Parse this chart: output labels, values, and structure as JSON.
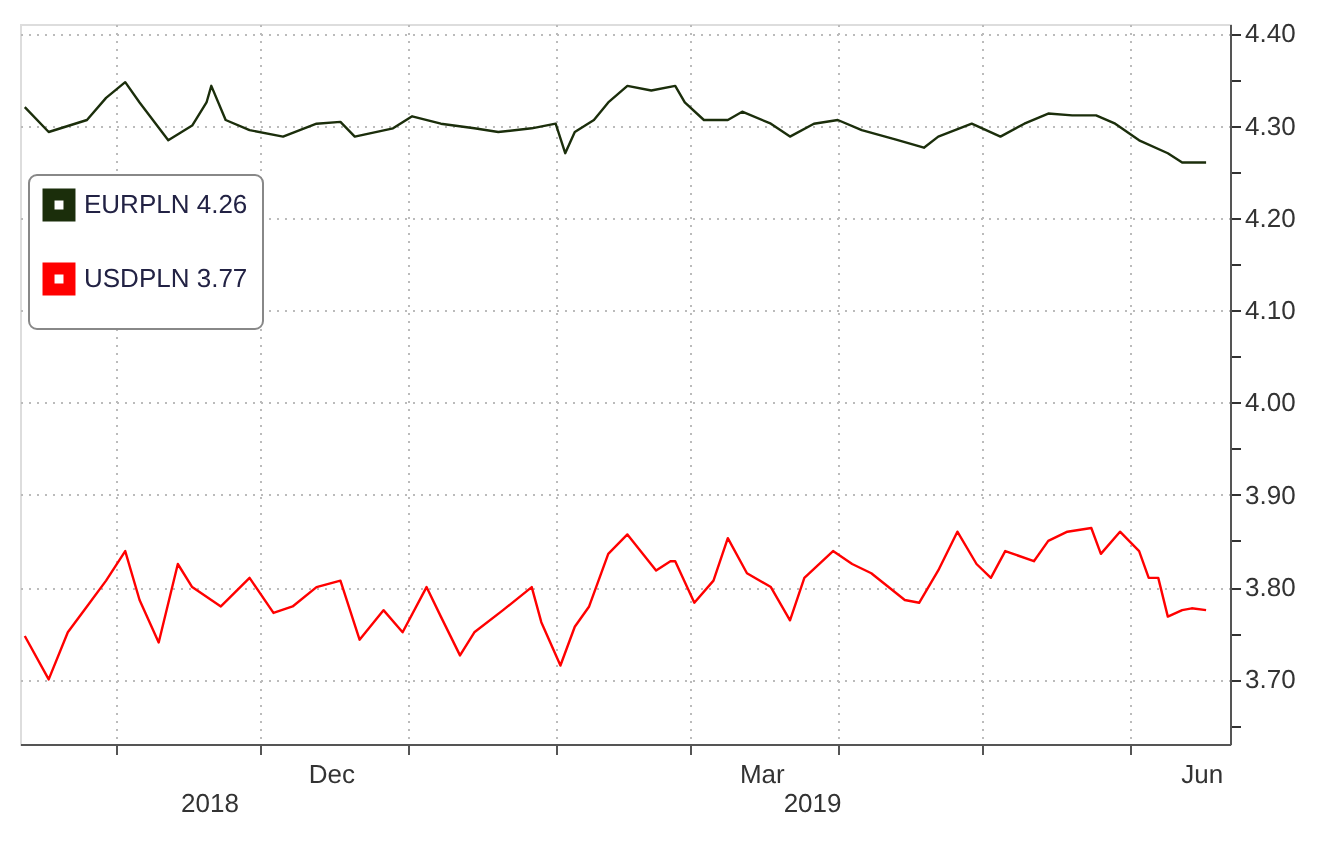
{
  "chart_data": {
    "type": "line",
    "legend": "top left",
    "grid": true,
    "marker": "none",
    "line_style": "solid",
    "xlim": [
      "2018-10-12",
      "2019-06-22"
    ],
    "xticks": [
      {
        "value": "2018-11-01",
        "label": null
      },
      {
        "value": "2018-12-01",
        "label": null
      },
      {
        "value": "2018-12-16",
        "label": "Dec"
      },
      {
        "value": "2019-01-01",
        "label": null
      },
      {
        "value": "2019-02-01",
        "label": null
      },
      {
        "value": "2019-03-01",
        "label": null
      },
      {
        "value": "2019-03-16",
        "label": "Mar"
      },
      {
        "value": "2019-04-01",
        "label": null
      },
      {
        "value": "2019-05-01",
        "label": null
      },
      {
        "value": "2019-06-01",
        "label": null
      },
      {
        "value": "2019-06-16",
        "label": "Jun"
      }
    ],
    "ylim": [
      3.63,
      4.41
    ],
    "yticks": [
      {
        "value": 3.65,
        "label": null
      },
      {
        "value": 3.7,
        "label": "3.70"
      },
      {
        "value": 3.75,
        "label": null
      },
      {
        "value": 3.8,
        "label": "3.80"
      },
      {
        "value": 3.85,
        "label": null
      },
      {
        "value": 3.9,
        "label": "3.90"
      },
      {
        "value": 3.95,
        "label": null
      },
      {
        "value": 4.0,
        "label": "4.00"
      },
      {
        "value": 4.05,
        "label": null
      },
      {
        "value": 4.1,
        "label": "4.10"
      },
      {
        "value": 4.15,
        "label": null
      },
      {
        "value": 4.2,
        "label": "4.20"
      },
      {
        "value": 4.25,
        "label": null
      },
      {
        "value": 4.3,
        "label": "4.30"
      },
      {
        "value": 4.35,
        "label": null
      },
      {
        "value": 4.4,
        "label": "4.40"
      }
    ],
    "annotations": [
      "2018",
      "2019"
    ],
    "series": [
      {
        "name": "EURPLN 4.26",
        "color": "#1b2e0b",
        "x": [
          "2018-10-13",
          "2018-10-18",
          "2018-10-26",
          "2018-10-30",
          "2018-11-03",
          "2018-11-06",
          "2018-11-12",
          "2018-11-17",
          "2018-11-20",
          "2018-11-21",
          "2018-11-24",
          "2018-11-29",
          "2018-12-06",
          "2018-12-13",
          "2018-12-18",
          "2018-12-21",
          "2018-12-29",
          "2019-01-02",
          "2019-01-08",
          "2019-01-15",
          "2019-01-20",
          "2019-01-27",
          "2019-02-01",
          "2019-02-03",
          "2019-02-05",
          "2019-02-09",
          "2019-02-12",
          "2019-02-16",
          "2019-02-21",
          "2019-02-26",
          "2019-02-28",
          "2019-03-04",
          "2019-03-09",
          "2019-03-12",
          "2019-03-18",
          "2019-03-22",
          "2019-03-27",
          "2019-04-01",
          "2019-04-06",
          "2019-04-13",
          "2019-04-19",
          "2019-04-22",
          "2019-04-29",
          "2019-05-05",
          "2019-05-10",
          "2019-05-15",
          "2019-05-20",
          "2019-05-25",
          "2019-05-29",
          "2019-06-03",
          "2019-06-09",
          "2019-06-12",
          "2019-06-17"
        ],
        "values": [
          4.32,
          4.293,
          4.306,
          4.33,
          4.347,
          4.325,
          4.284,
          4.3,
          4.325,
          4.343,
          4.306,
          4.295,
          4.288,
          4.302,
          4.304,
          4.288,
          4.297,
          4.31,
          4.302,
          4.297,
          4.293,
          4.297,
          4.302,
          4.27,
          4.293,
          4.306,
          4.325,
          4.343,
          4.338,
          4.343,
          4.325,
          4.306,
          4.306,
          4.315,
          4.302,
          4.288,
          4.302,
          4.306,
          4.295,
          4.285,
          4.276,
          4.288,
          4.302,
          4.288,
          4.302,
          4.313,
          4.311,
          4.311,
          4.302,
          4.284,
          4.27,
          4.26,
          4.26
        ]
      },
      {
        "name": "USDPLN 3.77",
        "color": "#ff0000",
        "x": [
          "2018-10-13",
          "2018-10-18",
          "2018-10-22",
          "2018-10-26",
          "2018-10-30",
          "2018-11-03",
          "2018-11-06",
          "2018-11-10",
          "2018-11-14",
          "2018-11-17",
          "2018-11-23",
          "2018-11-29",
          "2018-12-04",
          "2018-12-08",
          "2018-12-13",
          "2018-12-18",
          "2018-12-22",
          "2018-12-27",
          "2018-12-31",
          "2019-01-05",
          "2019-01-08",
          "2019-01-12",
          "2019-01-15",
          "2019-01-21",
          "2019-01-27",
          "2019-01-29",
          "2019-02-02",
          "2019-02-05",
          "2019-02-08",
          "2019-02-12",
          "2019-02-16",
          "2019-02-22",
          "2019-02-25",
          "2019-02-26",
          "2019-03-02",
          "2019-03-06",
          "2019-03-09",
          "2019-03-13",
          "2019-03-18",
          "2019-03-22",
          "2019-03-25",
          "2019-03-31",
          "2019-04-04",
          "2019-04-08",
          "2019-04-15",
          "2019-04-18",
          "2019-04-22",
          "2019-04-26",
          "2019-04-30",
          "2019-05-03",
          "2019-05-06",
          "2019-05-12",
          "2019-05-15",
          "2019-05-19",
          "2019-05-24",
          "2019-05-26",
          "2019-05-30",
          "2019-06-03",
          "2019-06-05",
          "2019-06-07",
          "2019-06-09",
          "2019-06-12",
          "2019-06-14",
          "2019-06-17"
        ],
        "values": [
          3.747,
          3.7,
          3.751,
          3.779,
          3.807,
          3.839,
          3.786,
          3.74,
          3.825,
          3.8,
          3.779,
          3.81,
          3.772,
          3.779,
          3.8,
          3.807,
          3.743,
          3.775,
          3.751,
          3.8,
          3.768,
          3.726,
          3.751,
          3.775,
          3.8,
          3.762,
          3.715,
          3.757,
          3.779,
          3.836,
          3.857,
          3.818,
          3.828,
          3.828,
          3.783,
          3.807,
          3.853,
          3.815,
          3.8,
          3.764,
          3.81,
          3.839,
          3.825,
          3.815,
          3.786,
          3.783,
          3.818,
          3.86,
          3.825,
          3.81,
          3.839,
          3.828,
          3.85,
          3.86,
          3.864,
          3.836,
          3.86,
          3.839,
          3.81,
          3.81,
          3.768,
          3.775,
          3.777,
          3.775
        ]
      }
    ]
  }
}
